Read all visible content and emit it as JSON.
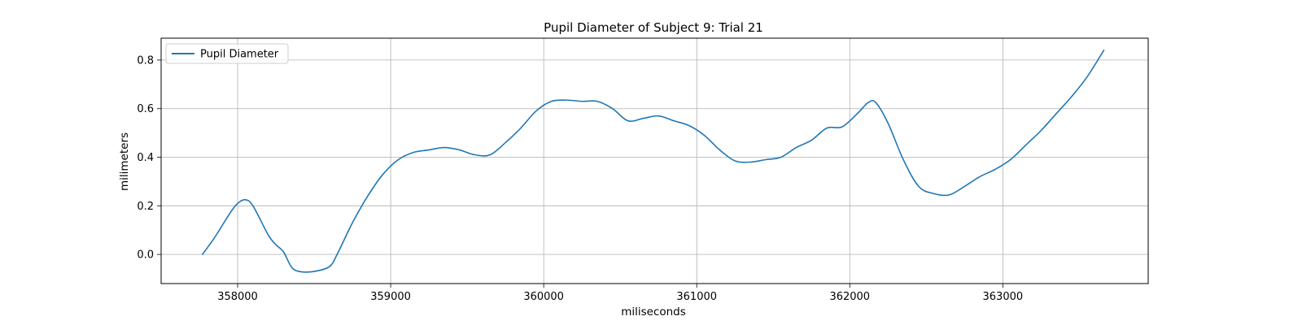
{
  "chart_data": {
    "type": "line",
    "title": "Pupil Diameter of Subject 9: Trial 21",
    "xlabel": "miliseconds",
    "ylabel": "milimeters",
    "xlim": [
      357500,
      363950
    ],
    "ylim": [
      -0.12,
      0.89
    ],
    "xticks": [
      358000,
      359000,
      360000,
      361000,
      362000,
      363000
    ],
    "yticks": [
      0.0,
      0.2,
      0.4,
      0.6,
      0.8
    ],
    "ytick_labels": [
      "0.0",
      "0.2",
      "0.4",
      "0.6",
      "0.8"
    ],
    "grid": true,
    "legend_position": "top-left",
    "colors": {
      "line": "#1f77b4",
      "grid": "#b0b0b0",
      "axes": "#000000",
      "legend_border": "#cccccc"
    },
    "series": [
      {
        "name": "Pupil Diameter",
        "x": [
          357770,
          357850,
          357950,
          358000,
          358050,
          358100,
          358200,
          358250,
          358300,
          358350,
          358400,
          358500,
          358600,
          358650,
          358750,
          358850,
          358950,
          359050,
          359150,
          359250,
          359350,
          359450,
          359550,
          359650,
          359750,
          359850,
          359950,
          360050,
          360150,
          360250,
          360350,
          360450,
          360550,
          360650,
          360750,
          360850,
          360950,
          361050,
          361150,
          361250,
          361350,
          361450,
          361550,
          361650,
          361750,
          361850,
          361950,
          362050,
          362120,
          362170,
          362250,
          362350,
          362450,
          362550,
          362650,
          362750,
          362850,
          362950,
          363050,
          363150,
          363250,
          363350,
          363450,
          363550,
          363660
        ],
        "y": [
          0.0,
          0.07,
          0.17,
          0.21,
          0.225,
          0.2,
          0.08,
          0.04,
          0.01,
          -0.05,
          -0.07,
          -0.07,
          -0.05,
          0.0,
          0.13,
          0.24,
          0.33,
          0.39,
          0.42,
          0.43,
          0.44,
          0.43,
          0.41,
          0.41,
          0.46,
          0.52,
          0.59,
          0.63,
          0.635,
          0.63,
          0.63,
          0.6,
          0.55,
          0.56,
          0.57,
          0.55,
          0.53,
          0.49,
          0.43,
          0.385,
          0.38,
          0.39,
          0.4,
          0.44,
          0.47,
          0.52,
          0.525,
          0.58,
          0.625,
          0.625,
          0.54,
          0.39,
          0.28,
          0.25,
          0.245,
          0.28,
          0.32,
          0.35,
          0.39,
          0.45,
          0.51,
          0.58,
          0.65,
          0.73,
          0.84
        ]
      }
    ]
  }
}
